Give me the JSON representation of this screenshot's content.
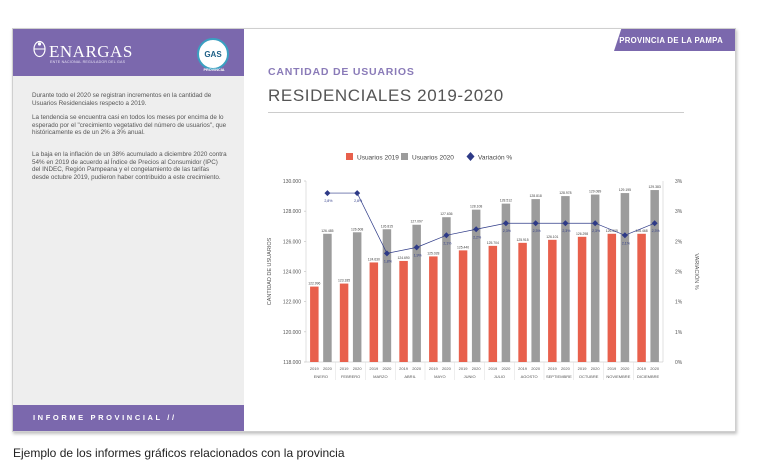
{
  "sidebar": {
    "logo_text": "ENARGAS",
    "logo_sub": "ENTE NACIONAL REGULADOR DEL GAS",
    "badge_text": "GAS",
    "badge_caption": "PROVINCIA",
    "paragraphs": [
      "Durante todo el 2020 se registran incrementos en la cantidad de Usuarios Residenciales respecto a 2019.",
      "La tendencia se encuentra casi en todos los meses por encima de lo esperado por el \"crecimiento vegetativo del número de usuarios\", que históricamente es de un 2% a 3% anual.",
      "La baja en la inflación de un 38% acumulado a diciembre 2020 contra 54% en 2019 de acuerdo al Índice de Precios al Consumidor (IPC) del INDEC, Región Pampeana y el congelamiento de las tarifas desde octubre 2019, pudieron haber contribuido a este crecimiento."
    ],
    "footer_label": "INFORME PROVINCIAL //"
  },
  "header": {
    "tag": "PROVINCIA DE LA PAMPA",
    "title_line1": "CANTIDAD DE USUARIOS",
    "title_line2": "RESIDENCIALES 2019-2020"
  },
  "caption": "Ejemplo de los informes gráficos relacionados con la provincia",
  "colors": {
    "purple": "#7b68ad",
    "bar_2019": "#e8604c",
    "bar_2020": "#9c9c9c",
    "variation": "#2e3a87"
  },
  "chart_data": {
    "type": "bar",
    "ylabel": "CANTIDAD DE USUARIOS",
    "y2label": "VARIACIÓN %",
    "ylim": [
      118000,
      130000
    ],
    "y_ticks": [
      "118.000",
      "120.000",
      "122.000",
      "124.000",
      "126.000",
      "128.000",
      "130.000"
    ],
    "y2lim": [
      0,
      3
    ],
    "y2_ticks": [
      "0%",
      "1%",
      "1%",
      "2%",
      "2%",
      "3%",
      "3%"
    ],
    "months": [
      "ENERO",
      "FEBRERO",
      "MARZO",
      "ABRIL",
      "MAYO",
      "JUNIO",
      "JULIO",
      "AGOSTO",
      "SEPTIEMBRE",
      "OCTUBRE",
      "NOVIEMBRE",
      "DICIEMBRE"
    ],
    "year_labels": [
      "2019",
      "2020"
    ],
    "legend": [
      "Usuarios 2019",
      "Usuarios 2020",
      "Variación %"
    ],
    "series": [
      {
        "name": "Usuarios 2019",
        "values": [
          123000,
          123200,
          124600,
          124700,
          125000,
          125400,
          125700,
          125900,
          126100,
          126300,
          126500,
          126500
        ]
      },
      {
        "name": "Usuarios 2020",
        "values": [
          126500,
          126600,
          126800,
          127100,
          127600,
          128100,
          128500,
          128800,
          129000,
          129100,
          129200,
          129400
        ]
      },
      {
        "name": "Variación %",
        "values": [
          2.8,
          2.8,
          1.8,
          1.9,
          2.1,
          2.2,
          2.3,
          2.3,
          2.3,
          2.3,
          2.1,
          2.3
        ]
      }
    ],
    "bar_labels_2019": [
      "122.996",
      "123.185",
      "124.630",
      "124.690",
      "125.028",
      "125.440",
      "125.704",
      "125.915",
      "126.101",
      "126.298",
      "126.505",
      "126.468"
    ],
    "bar_labels_2020": [
      "126.485",
      "126.608",
      "126.815",
      "127.097",
      "127.636",
      "128.108",
      "128.512",
      "128.818",
      "128.978",
      "129.089",
      "129.195",
      "129.383"
    ],
    "var_labels": [
      "2,8%",
      "2,8%",
      "1,8%",
      "1,9%",
      "2,1%",
      "2,2%",
      "2,3%",
      "2,3%",
      "2,3%",
      "2,3%",
      "2,1%",
      "2,3%"
    ],
    "legend_position": "top"
  }
}
